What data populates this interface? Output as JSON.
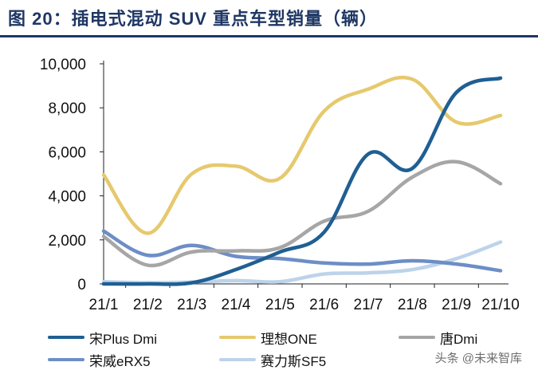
{
  "title": "图 20：插电式混动 SUV 重点车型销量（辆）",
  "watermark": "头条 @未来智库",
  "chart_data": {
    "type": "line",
    "title": "图 20：插电式混动 SUV 重点车型销量（辆）",
    "xlabel": "",
    "ylabel": "",
    "categories": [
      "21/1",
      "21/2",
      "21/3",
      "21/4",
      "21/5",
      "21/6",
      "21/7",
      "21/8",
      "21/9",
      "21/10"
    ],
    "ylim": [
      0,
      10000
    ],
    "yticks": [
      0,
      2000,
      4000,
      6000,
      8000,
      10000
    ],
    "ytick_labels": [
      "0",
      "2,000",
      "4,000",
      "6,000",
      "8,000",
      "10,000"
    ],
    "series": [
      {
        "name": "宋Plus Dmi",
        "color": "#1f5f93",
        "values": [
          0,
          0,
          50,
          650,
          1450,
          2350,
          5900,
          5250,
          8700,
          9350
        ]
      },
      {
        "name": "理想ONE",
        "color": "#e6c96e",
        "values": [
          4950,
          2300,
          5000,
          5350,
          4800,
          7850,
          8850,
          9300,
          7350,
          7650
        ]
      },
      {
        "name": "唐Dmi",
        "color": "#a6a6a6",
        "values": [
          2150,
          850,
          1450,
          1500,
          1650,
          2850,
          3300,
          4850,
          5550,
          4550
        ]
      },
      {
        "name": "荣威eRX5",
        "color": "#6d8ec5",
        "values": [
          2400,
          1300,
          1750,
          1250,
          1150,
          950,
          900,
          1050,
          900,
          600
        ]
      },
      {
        "name": "赛力斯SF5",
        "color": "#bdd3ea",
        "values": [
          100,
          50,
          80,
          150,
          100,
          450,
          500,
          650,
          1150,
          1900
        ]
      }
    ],
    "legend": "bottom"
  }
}
